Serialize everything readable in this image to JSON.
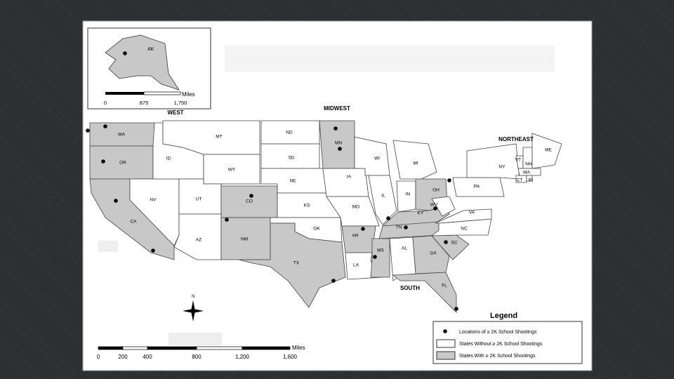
{
  "inset": {
    "label": "AK",
    "scale": {
      "ticks": [
        "0",
        "875",
        "1,750"
      ],
      "unit": "Miles"
    }
  },
  "regions": [
    "WEST",
    "MIDWEST",
    "NORTHEAST",
    "SOUTH"
  ],
  "states": [
    {
      "label": "WA",
      "shaded": true
    },
    {
      "label": "OR",
      "shaded": true
    },
    {
      "label": "CA",
      "shaded": true
    },
    {
      "label": "NV",
      "shaded": false
    },
    {
      "label": "ID",
      "shaded": false
    },
    {
      "label": "MT",
      "shaded": false
    },
    {
      "label": "WY",
      "shaded": false
    },
    {
      "label": "UT",
      "shaded": false
    },
    {
      "label": "CO",
      "shaded": true
    },
    {
      "label": "AZ",
      "shaded": false
    },
    {
      "label": "NM",
      "shaded": true
    },
    {
      "label": "ND",
      "shaded": false
    },
    {
      "label": "SD",
      "shaded": false
    },
    {
      "label": "NE",
      "shaded": false
    },
    {
      "label": "KS",
      "shaded": false
    },
    {
      "label": "OK",
      "shaded": false
    },
    {
      "label": "TX",
      "shaded": true
    },
    {
      "label": "MN",
      "shaded": true
    },
    {
      "label": "IA",
      "shaded": false
    },
    {
      "label": "MO",
      "shaded": false
    },
    {
      "label": "AR",
      "shaded": true
    },
    {
      "label": "LA",
      "shaded": false
    },
    {
      "label": "WI",
      "shaded": false
    },
    {
      "label": "IL",
      "shaded": false
    },
    {
      "label": "MI",
      "shaded": false
    },
    {
      "label": "IN",
      "shaded": false
    },
    {
      "label": "OH",
      "shaded": true
    },
    {
      "label": "KY",
      "shaded": true
    },
    {
      "label": "TN",
      "shaded": true
    },
    {
      "label": "MS",
      "shaded": true
    },
    {
      "label": "AL",
      "shaded": false
    },
    {
      "label": "GA",
      "shaded": true
    },
    {
      "label": "FL",
      "shaded": true
    },
    {
      "label": "SC",
      "shaded": true
    },
    {
      "label": "NC",
      "shaded": false
    },
    {
      "label": "VA",
      "shaded": false
    },
    {
      "label": "WV",
      "shaded": false
    },
    {
      "label": "PA",
      "shaded": false
    },
    {
      "label": "NY",
      "shaded": false
    },
    {
      "label": "VT",
      "shaded": false
    },
    {
      "label": "NH",
      "shaded": false
    },
    {
      "label": "ME",
      "shaded": false
    },
    {
      "label": "MA",
      "shaded": false
    },
    {
      "label": "CT",
      "shaded": false
    },
    {
      "label": "RI",
      "shaded": false
    }
  ],
  "scale": {
    "ticks": [
      "0",
      "200",
      "400",
      "800",
      "1,200",
      "1,600"
    ],
    "unit": "Miles"
  },
  "legend": {
    "title": "Legend",
    "items": [
      "Locations of ≥ 2K School Shootings",
      "States Without ≥ 2K School Shootings",
      "States With ≥ 2K School Shootings"
    ]
  }
}
